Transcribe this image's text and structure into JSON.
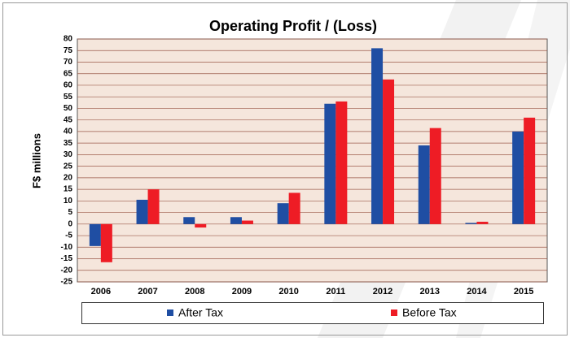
{
  "chart_data": {
    "type": "bar",
    "title": "Operating Profit / (Loss)",
    "y_label": "F$ millions",
    "categories": [
      "2006",
      "2007",
      "2008",
      "2009",
      "2010",
      "2011",
      "2012",
      "2013",
      "2014",
      "2015"
    ],
    "series": [
      {
        "name": "After Tax",
        "color": "#1f4ea3",
        "values": [
          -9.5,
          10.5,
          3,
          3,
          9,
          52,
          76,
          34,
          0.5,
          40
        ]
      },
      {
        "name": "Before Tax",
        "color": "#ee1c25",
        "values": [
          -16.5,
          15,
          -1.5,
          1.5,
          13.5,
          53,
          62.5,
          41.5,
          1,
          46
        ]
      }
    ],
    "ylim": [
      -25,
      80
    ],
    "yticks": [
      -25,
      -20,
      -15,
      -10,
      -5,
      0,
      5,
      10,
      15,
      20,
      25,
      30,
      35,
      40,
      45,
      50,
      55,
      60,
      65,
      70,
      75,
      80
    ],
    "grid": true,
    "legend": "bottom"
  }
}
